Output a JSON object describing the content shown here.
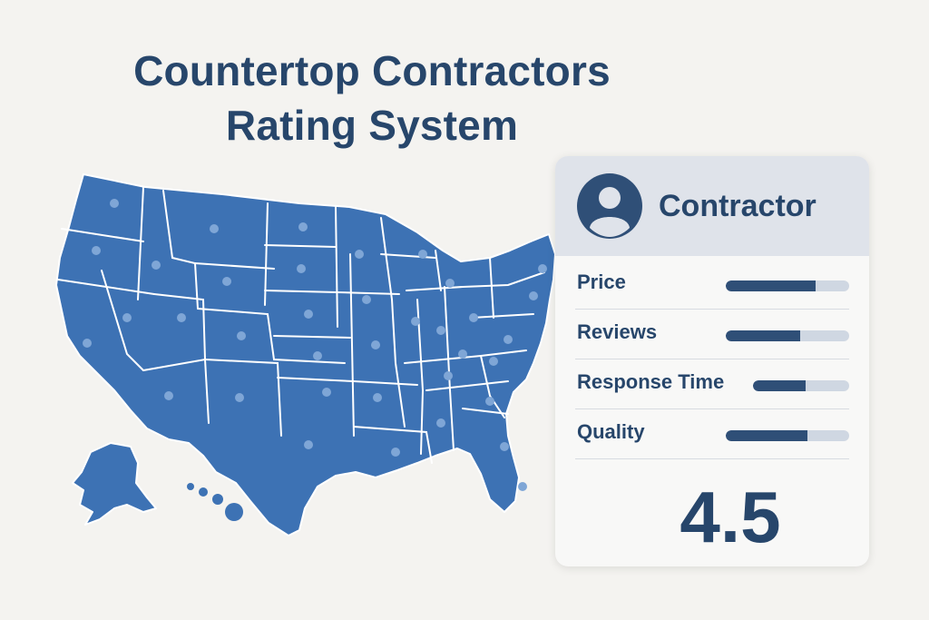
{
  "title": {
    "line1": "Countertop Contractors",
    "line2": "Rating System"
  },
  "map": {
    "fill_color": "#3d72b4",
    "border_color": "#ffffff",
    "dot_color": "#7fa6d6",
    "icon": "us-map-icon"
  },
  "card": {
    "title": "Contractor",
    "avatar_icon": "user-avatar-icon",
    "accent": "#2f4f77",
    "track_color": "#cfd7e2",
    "metrics": [
      {
        "label": "Price",
        "fill": 0.73
      },
      {
        "label": "Reviews",
        "fill": 0.6
      },
      {
        "label": "Response Time",
        "fill": 0.55
      },
      {
        "label": "Quality",
        "fill": 0.66
      }
    ],
    "score": "4.5"
  }
}
